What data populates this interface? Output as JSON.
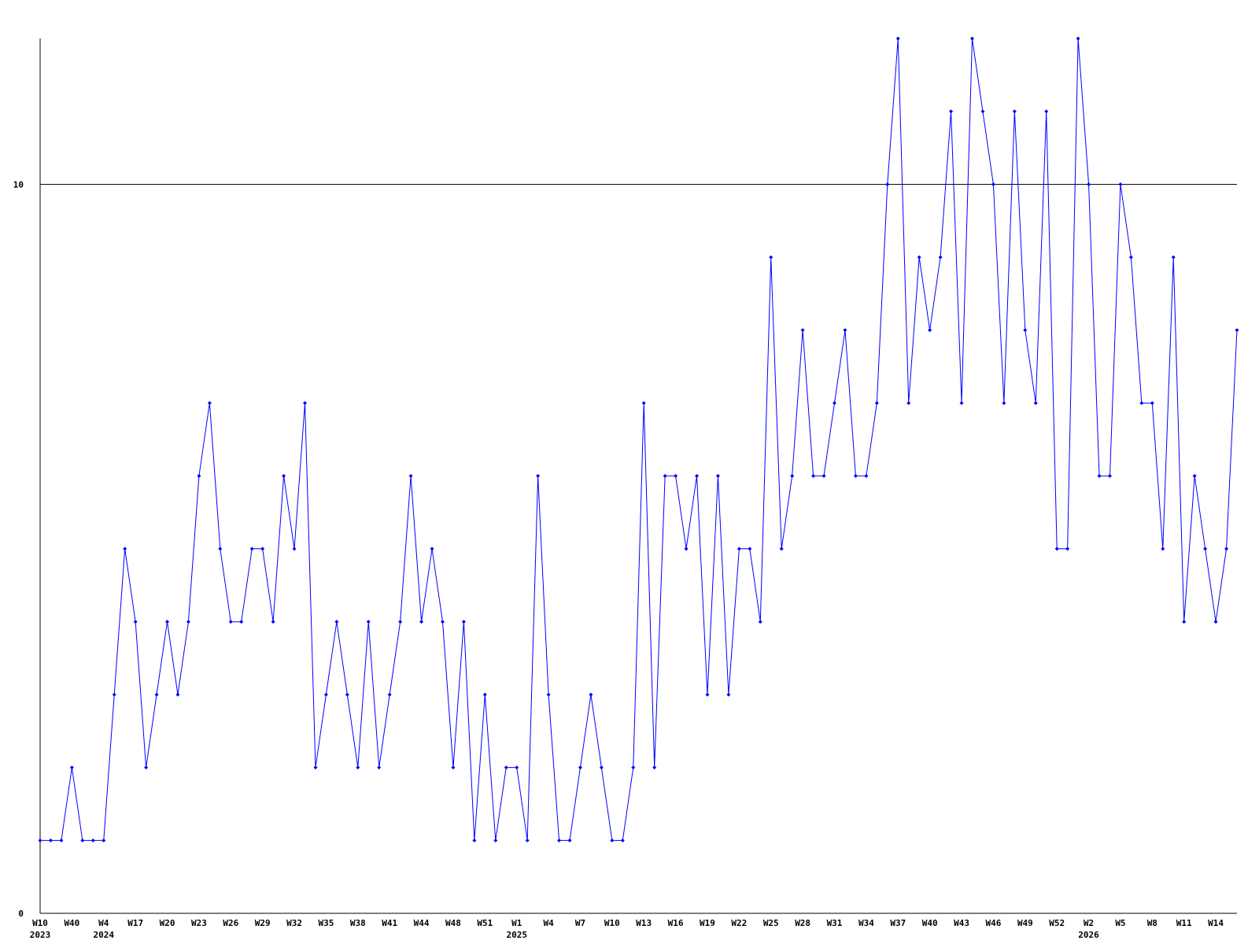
{
  "chart_data": {
    "type": "line",
    "categories": [
      "W10",
      null,
      null,
      "W40",
      null,
      null,
      "W4",
      null,
      null,
      "W17",
      null,
      null,
      "W20",
      null,
      null,
      "W23",
      null,
      null,
      "W26",
      null,
      null,
      "W29",
      null,
      null,
      "W32",
      null,
      null,
      "W35",
      null,
      null,
      "W38",
      null,
      null,
      "W41",
      null,
      null,
      "W44",
      null,
      null,
      "W48",
      null,
      null,
      "W51",
      null,
      null,
      "W1",
      null,
      null,
      "W4",
      null,
      null,
      "W7",
      null,
      null,
      "W10",
      null,
      null,
      "W13",
      null,
      null,
      "W16",
      null,
      null,
      "W19",
      null,
      null,
      "W22",
      null,
      null,
      "W25",
      null,
      null,
      "W28",
      null,
      null,
      "W31",
      null,
      null,
      "W34",
      null,
      null,
      "W37",
      null,
      null,
      "W40",
      null,
      null,
      "W43",
      null,
      null,
      "W46",
      null,
      null,
      "W49",
      null,
      null,
      "W52",
      null,
      null,
      "W2",
      null,
      null,
      "W5",
      null,
      null,
      "W8",
      null,
      null,
      "W11",
      null,
      null,
      "W14",
      null,
      null
    ],
    "year_labels": [
      "2023",
      null,
      null,
      null,
      null,
      null,
      "2024",
      null,
      null,
      null,
      null,
      null,
      null,
      null,
      null,
      null,
      null,
      null,
      null,
      null,
      null,
      null,
      null,
      null,
      null,
      null,
      null,
      null,
      null,
      null,
      null,
      null,
      null,
      null,
      null,
      null,
      null,
      null,
      null,
      null,
      null,
      null,
      null,
      null,
      null,
      "2025",
      null,
      null,
      null,
      null,
      null,
      null,
      null,
      null,
      null,
      null,
      null,
      null,
      null,
      null,
      null,
      null,
      null,
      null,
      null,
      null,
      null,
      null,
      null,
      null,
      null,
      null,
      null,
      null,
      null,
      null,
      null,
      null,
      null,
      null,
      null,
      null,
      null,
      null,
      null,
      null,
      null,
      null,
      null,
      null,
      null,
      null,
      null,
      null,
      null,
      null,
      null,
      null,
      null,
      "2026",
      null,
      null,
      null,
      null,
      null,
      null,
      null,
      null,
      null,
      null,
      null,
      null,
      null,
      null
    ],
    "values": [
      1,
      1,
      1,
      2,
      1,
      1,
      1,
      3,
      5,
      4,
      2,
      3,
      4,
      3,
      4,
      6,
      7,
      5,
      4,
      4,
      5,
      5,
      4,
      6,
      5,
      7,
      2,
      3,
      4,
      3,
      2,
      4,
      2,
      3,
      4,
      6,
      4,
      5,
      4,
      2,
      4,
      1,
      3,
      1,
      2,
      2,
      1,
      6,
      3,
      1,
      1,
      2,
      3,
      2,
      1,
      1,
      2,
      7,
      2,
      6,
      6,
      5,
      6,
      3,
      6,
      3,
      5,
      5,
      4,
      9,
      5,
      6,
      8,
      6,
      6,
      7,
      8,
      6,
      6,
      7,
      10,
      12,
      7,
      9,
      8,
      9,
      11,
      7,
      12,
      11,
      10,
      7,
      11,
      8,
      7,
      11,
      5,
      5,
      12,
      10,
      6,
      6,
      10,
      9,
      7,
      7,
      5,
      9,
      4,
      6,
      5,
      4,
      5,
      8
    ],
    "color": "#0000ff",
    "ylim": [
      0,
      12
    ],
    "yticks": [
      0,
      10
    ],
    "grid": true
  }
}
